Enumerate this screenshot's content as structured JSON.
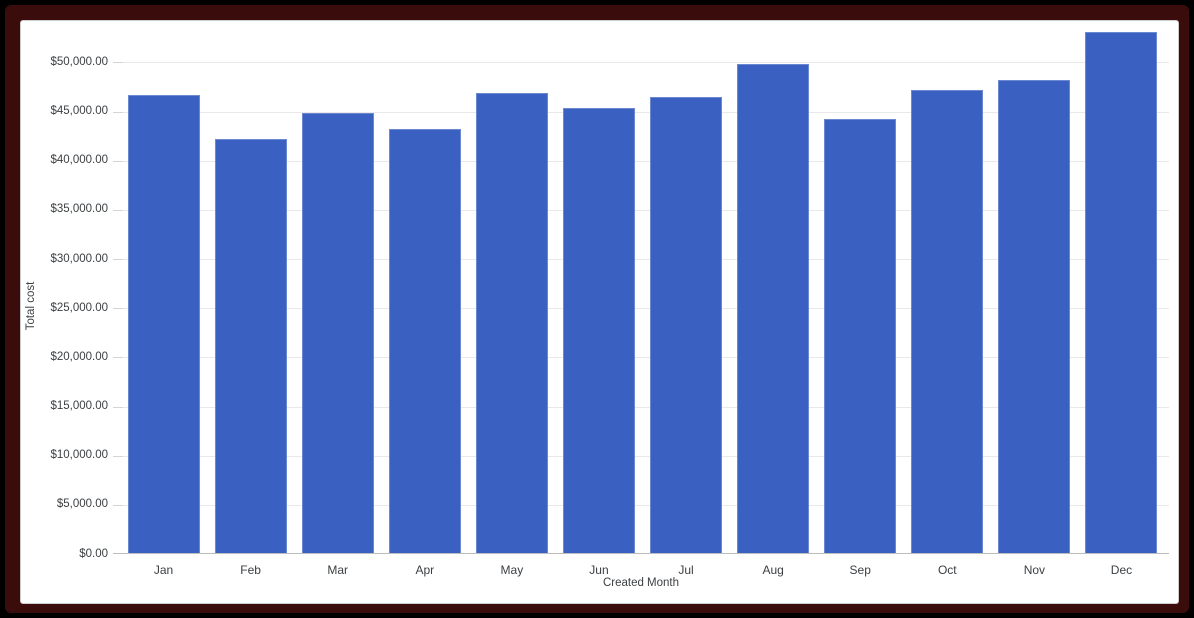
{
  "frame": {
    "outer_color": "#000000",
    "inner_color": "#3a0c0c",
    "card_background": "#ffffff",
    "card_border_color": "#cccccc"
  },
  "chart": {
    "y_axis_title": "Total cost",
    "x_axis_title": "Created Month"
  },
  "chart_data": {
    "type": "bar",
    "title": "",
    "categories": [
      "Jan",
      "Feb",
      "Mar",
      "Apr",
      "May",
      "Jun",
      "Jul",
      "Aug",
      "Sep",
      "Oct",
      "Nov",
      "Dec"
    ],
    "values": [
      46600,
      42100,
      44700,
      43100,
      46800,
      45300,
      46400,
      49700,
      44100,
      47100,
      48100,
      53000
    ],
    "xlabel": "Created Month",
    "ylabel": "Total cost",
    "ylim": [
      0,
      54000
    ],
    "ytick_interval": 5000,
    "ytick_labels": [
      "$0.00",
      "$5,000.00",
      "$10,000.00",
      "$15,000.00",
      "$20,000.00",
      "$25,000.00",
      "$30,000.00",
      "$35,000.00",
      "$40,000.00",
      "$45,000.00",
      "$50,000.00"
    ],
    "grid": true,
    "legend": "none",
    "bar_color": "#3a61c2",
    "gridline_color": "#e9e9e9",
    "axis_line_color": "#bdbdbd",
    "tick_color": "#d4d4d4",
    "text_color": "#3c4043"
  }
}
